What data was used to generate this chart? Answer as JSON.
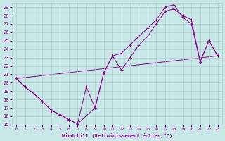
{
  "background_color": "#c8e8e8",
  "grid_color": "#b0d0d0",
  "line_color": "#880088",
  "marker": "+",
  "xlabel": "Windchill (Refroidissement éolien,°C)",
  "ylim": [
    15,
    29.5
  ],
  "xlim": [
    -0.5,
    23.5
  ],
  "yticks": [
    15,
    16,
    17,
    18,
    19,
    20,
    21,
    22,
    23,
    24,
    25,
    26,
    27,
    28,
    29
  ],
  "xticks": [
    0,
    1,
    2,
    3,
    4,
    5,
    6,
    7,
    8,
    9,
    10,
    11,
    12,
    13,
    14,
    15,
    16,
    17,
    18,
    19,
    20,
    21,
    22,
    23
  ],
  "line1_x": [
    0,
    1,
    2,
    3,
    4,
    5,
    6,
    7,
    8,
    9,
    10,
    11,
    12,
    13,
    14,
    15,
    16,
    17,
    18,
    19,
    20,
    21,
    22,
    23
  ],
  "line1_y": [
    20.5,
    19.5,
    18.7,
    17.8,
    16.7,
    16.2,
    15.6,
    15.1,
    19.5,
    17.0,
    21.2,
    23.2,
    21.5,
    23.0,
    24.5,
    25.5,
    27.0,
    28.5,
    28.8,
    28.0,
    27.5,
    22.5,
    25.0,
    23.2
  ],
  "line2_x": [
    0,
    1,
    2,
    3,
    4,
    5,
    6,
    7,
    9,
    10,
    11,
    12,
    13,
    14,
    15,
    16,
    17,
    18,
    19,
    20,
    21,
    22,
    23
  ],
  "line2_y": [
    20.5,
    19.5,
    18.7,
    17.8,
    16.7,
    16.2,
    15.6,
    15.1,
    17.0,
    21.2,
    23.2,
    23.5,
    24.5,
    25.5,
    26.5,
    27.5,
    29.0,
    29.3,
    27.8,
    27.0,
    22.5,
    25.0,
    23.2
  ],
  "line3_x": [
    0,
    23
  ],
  "line3_y": [
    20.5,
    23.2
  ]
}
